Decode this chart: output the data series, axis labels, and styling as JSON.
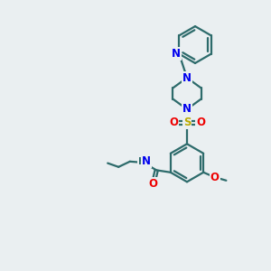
{
  "bg_color": "#eaeff1",
  "bond_color": "#2d6b6b",
  "bond_width": 1.6,
  "dbo": 0.055,
  "atom_colors": {
    "N": "#0000ee",
    "O": "#ee0000",
    "S": "#bbaa00",
    "C": "#2d6b6b",
    "H": "#2d6b6b"
  },
  "fs": 8.5
}
